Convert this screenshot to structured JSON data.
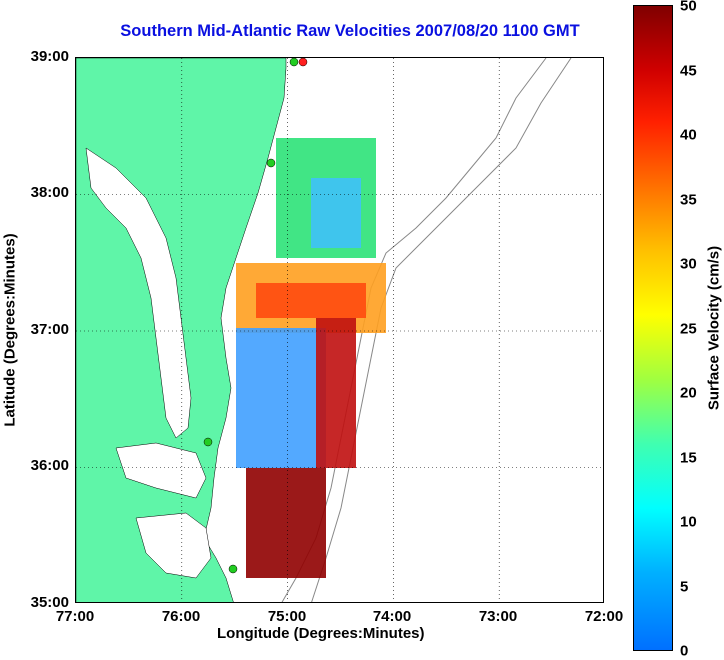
{
  "title": "Southern Mid-Atlantic Raw Velocities 2007/08/20 1100 GMT",
  "axes": {
    "xlabel": "Longitude (Degrees:Minutes)",
    "ylabel": "Latitude (Degrees:Minutes)",
    "xticks": [
      "77:00",
      "76:00",
      "75:00",
      "74:00",
      "73:00",
      "72:00"
    ],
    "yticks": [
      "39:00",
      "38:00",
      "37:00",
      "36:00",
      "35:00"
    ],
    "xlim": [
      -77,
      -72
    ],
    "ylim": [
      35,
      39
    ]
  },
  "colorbar": {
    "label": "Surface Velocity (cm/s)",
    "ticks": [
      "50",
      "45",
      "40",
      "35",
      "30",
      "25",
      "20",
      "15",
      "10",
      "5",
      "0"
    ],
    "range": [
      0,
      50
    ]
  },
  "colors": {
    "land": "#5ff5a8",
    "title": "#0a10e0",
    "site_marker": "#22cc22",
    "site_marker_red": "#ff2020"
  }
}
